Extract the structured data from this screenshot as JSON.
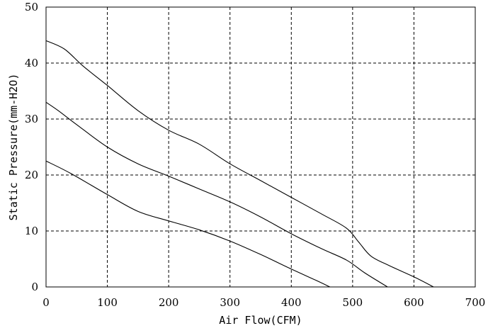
{
  "chart_data": {
    "type": "line",
    "title": "",
    "xlabel": "Air Flow(CFM)",
    "ylabel": "Static Pressure(mm-H2O)",
    "xlim": [
      0,
      700
    ],
    "ylim": [
      0,
      50
    ],
    "x_ticks": [
      "0",
      "100",
      "200",
      "300",
      "400",
      "500",
      "600",
      "700"
    ],
    "y_ticks": [
      "0",
      "10",
      "20",
      "30",
      "40",
      "50"
    ],
    "grid": true,
    "legend": "none",
    "series": [
      {
        "points": [
          [
            0,
            44
          ],
          [
            30,
            42.5
          ],
          [
            60,
            39.5
          ],
          [
            100,
            36
          ],
          [
            150,
            31.5
          ],
          [
            200,
            28
          ],
          [
            250,
            25.5
          ],
          [
            300,
            22
          ],
          [
            350,
            19
          ],
          [
            400,
            16
          ],
          [
            450,
            13
          ],
          [
            490,
            10.5
          ],
          [
            510,
            8
          ],
          [
            530,
            5.5
          ],
          [
            560,
            3.8
          ],
          [
            600,
            1.8
          ],
          [
            632,
            0
          ]
        ]
      },
      {
        "points": [
          [
            0,
            33
          ],
          [
            20,
            31.5
          ],
          [
            50,
            29
          ],
          [
            100,
            25
          ],
          [
            150,
            22
          ],
          [
            200,
            19.8
          ],
          [
            250,
            17.5
          ],
          [
            300,
            15.2
          ],
          [
            350,
            12.5
          ],
          [
            400,
            9.5
          ],
          [
            450,
            6.8
          ],
          [
            490,
            4.8
          ],
          [
            520,
            2.5
          ],
          [
            557,
            0
          ]
        ]
      },
      {
        "points": [
          [
            0,
            22.5
          ],
          [
            40,
            20.3
          ],
          [
            100,
            16.5
          ],
          [
            150,
            13.5
          ],
          [
            200,
            11.8
          ],
          [
            250,
            10.2
          ],
          [
            300,
            8.2
          ],
          [
            350,
            5.8
          ],
          [
            400,
            3.2
          ],
          [
            440,
            1.2
          ],
          [
            463,
            0
          ]
        ]
      }
    ]
  }
}
